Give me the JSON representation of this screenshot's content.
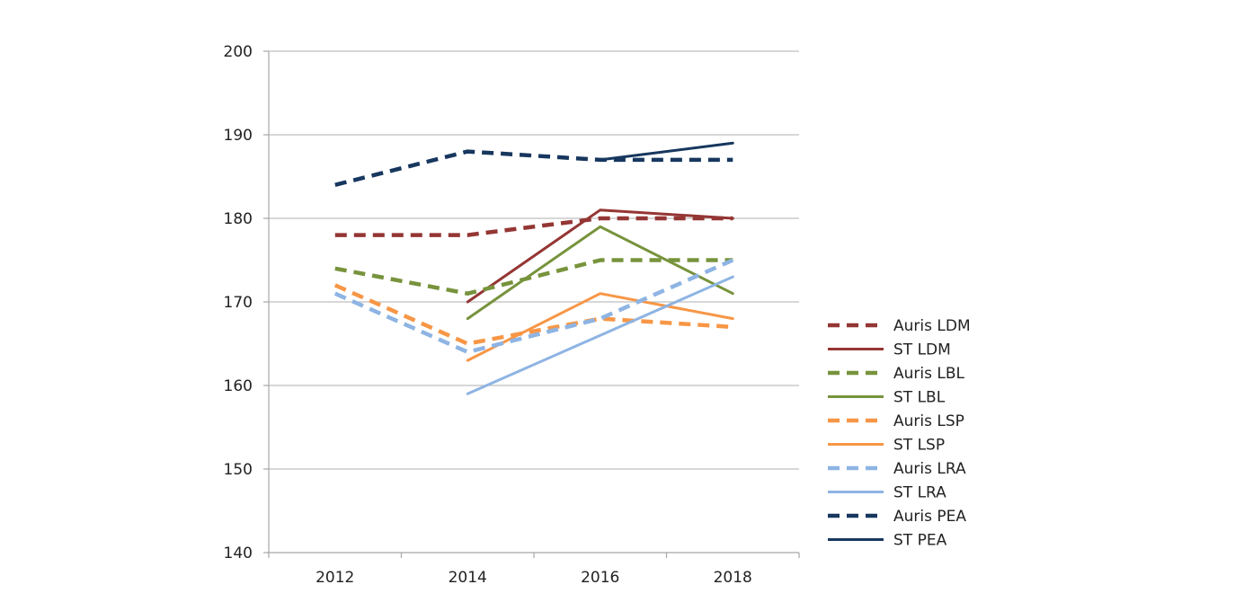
{
  "chart_data": {
    "type": "line",
    "title": "",
    "xlabel": "",
    "ylabel": "",
    "categories": [
      "2012",
      "2014",
      "2016",
      "2018"
    ],
    "ylim": [
      140,
      200
    ],
    "yticks": [
      140,
      150,
      160,
      170,
      180,
      190,
      200
    ],
    "grid": "horizontal",
    "legend_position": "right",
    "series": [
      {
        "name": "Auris LDM",
        "values": [
          178,
          178,
          180,
          180
        ],
        "color": "#943634",
        "dashed": true
      },
      {
        "name": "ST LDM",
        "values": [
          null,
          170,
          181,
          180
        ],
        "color": "#943634",
        "dashed": false
      },
      {
        "name": "Auris LBL",
        "values": [
          174,
          171,
          175,
          175
        ],
        "color": "#77933C",
        "dashed": true
      },
      {
        "name": "ST LBL",
        "values": [
          null,
          168,
          179,
          171
        ],
        "color": "#77933C",
        "dashed": false
      },
      {
        "name": "Auris LSP",
        "values": [
          172,
          165,
          168,
          167
        ],
        "color": "#F79646",
        "dashed": true
      },
      {
        "name": "ST LSP",
        "values": [
          null,
          163,
          171,
          168
        ],
        "color": "#F79646",
        "dashed": false
      },
      {
        "name": "Auris LRA",
        "values": [
          171,
          164,
          168,
          175
        ],
        "color": "#8EB4E3",
        "dashed": true
      },
      {
        "name": "ST LRA",
        "values": [
          null,
          159,
          166,
          173
        ],
        "color": "#8EB4E3",
        "dashed": false
      },
      {
        "name": "Auris PEA",
        "values": [
          184,
          188,
          187,
          187
        ],
        "color": "#17375E",
        "dashed": true
      },
      {
        "name": "ST PEA",
        "values": [
          null,
          null,
          187,
          189
        ],
        "color": "#17375E",
        "dashed": false
      }
    ]
  }
}
